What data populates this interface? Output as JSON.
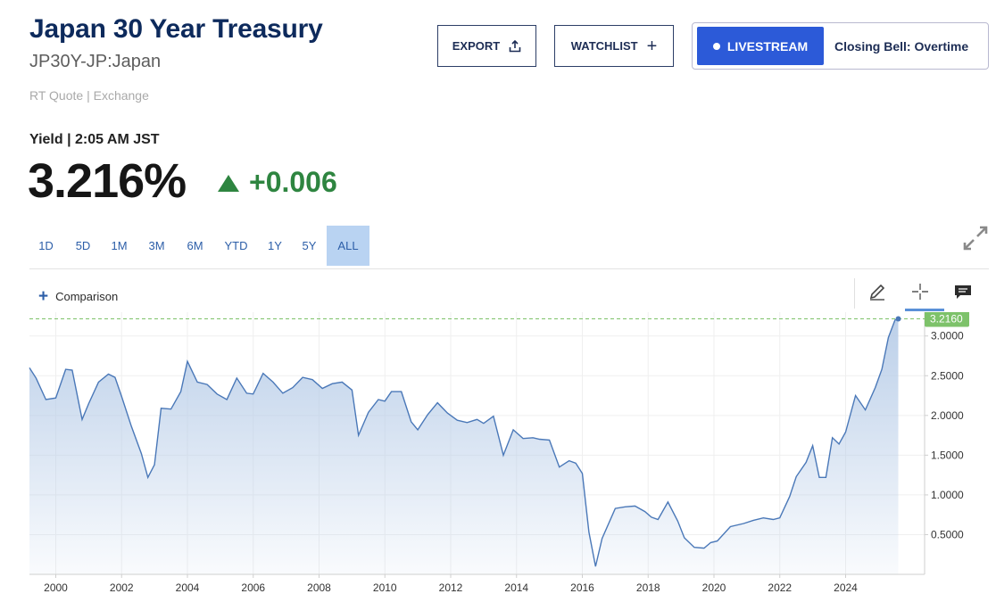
{
  "header": {
    "title": "Japan 30 Year Treasury",
    "symbol": "JP30Y-JP:Japan",
    "quote_type": "RT Quote | Exchange"
  },
  "buttons": {
    "export": "EXPORT",
    "watchlist": "WATCHLIST",
    "livestream": "LIVESTREAM",
    "live_show": "Closing Bell: Overtime"
  },
  "quote": {
    "label": "Yield | 2:05 AM JST",
    "price": "3.216%",
    "change": "+0.006",
    "direction": "up",
    "change_color": "#2e8540"
  },
  "ranges": {
    "items": [
      "1D",
      "5D",
      "1M",
      "3M",
      "6M",
      "YTD",
      "1Y",
      "5Y",
      "ALL"
    ],
    "active": "ALL"
  },
  "toolbar": {
    "comparison": "Comparison"
  },
  "chart_data": {
    "type": "area",
    "x_label_ticks": [
      "2000",
      "2002",
      "2004",
      "2006",
      "2008",
      "2010",
      "2012",
      "2014",
      "2016",
      "2018",
      "2020",
      "2022",
      "2024"
    ],
    "y_label_ticks": [
      "0.5000",
      "1.0000",
      "1.5000",
      "2.0000",
      "2.5000",
      "3.0000"
    ],
    "xlim": [
      1999.2,
      2026.4
    ],
    "ylim": [
      0,
      3.3
    ],
    "last_value_label": "3.2160",
    "last_value": 3.216,
    "line_color": "#4a78b8",
    "fill_color": "#b8cde8",
    "tag_color": "#7dc26a",
    "x": [
      1999.2,
      1999.4,
      1999.7,
      2000.0,
      2000.3,
      2000.5,
      2000.8,
      2001.0,
      2001.3,
      2001.6,
      2001.8,
      2002.0,
      2002.3,
      2002.6,
      2002.8,
      2003.0,
      2003.2,
      2003.5,
      2003.8,
      2004.0,
      2004.3,
      2004.6,
      2004.9,
      2005.2,
      2005.5,
      2005.8,
      2006.0,
      2006.3,
      2006.6,
      2006.9,
      2007.2,
      2007.5,
      2007.8,
      2008.1,
      2008.4,
      2008.7,
      2009.0,
      2009.2,
      2009.5,
      2009.8,
      2010.0,
      2010.2,
      2010.5,
      2010.8,
      2011.0,
      2011.3,
      2011.6,
      2011.9,
      2012.2,
      2012.5,
      2012.8,
      2013.0,
      2013.3,
      2013.6,
      2013.9,
      2014.2,
      2014.5,
      2014.7,
      2015.0,
      2015.3,
      2015.6,
      2015.8,
      2016.0,
      2016.2,
      2016.4,
      2016.6,
      2017.0,
      2017.3,
      2017.6,
      2017.9,
      2018.1,
      2018.3,
      2018.6,
      2018.9,
      2019.1,
      2019.4,
      2019.7,
      2019.9,
      2020.1,
      2020.5,
      2020.9,
      2021.2,
      2021.5,
      2021.8,
      2022.0,
      2022.3,
      2022.5,
      2022.8,
      2023.0,
      2023.2,
      2023.4,
      2023.6,
      2023.8,
      2024.0,
      2024.3,
      2024.6,
      2024.9,
      2025.1,
      2025.3,
      2025.5,
      2025.6
    ],
    "y": [
      2.6,
      2.47,
      2.2,
      2.22,
      2.58,
      2.57,
      1.95,
      2.15,
      2.42,
      2.52,
      2.48,
      2.24,
      1.86,
      1.52,
      1.22,
      1.38,
      2.09,
      2.08,
      2.3,
      2.68,
      2.42,
      2.39,
      2.27,
      2.2,
      2.47,
      2.28,
      2.27,
      2.53,
      2.42,
      2.28,
      2.35,
      2.48,
      2.45,
      2.34,
      2.4,
      2.42,
      2.32,
      1.75,
      2.04,
      2.2,
      2.18,
      2.3,
      2.3,
      1.92,
      1.82,
      2.01,
      2.16,
      2.03,
      1.94,
      1.91,
      1.95,
      1.9,
      1.99,
      1.5,
      1.82,
      1.71,
      1.72,
      1.7,
      1.69,
      1.35,
      1.43,
      1.4,
      1.27,
      0.53,
      0.1,
      0.45,
      0.83,
      0.85,
      0.86,
      0.79,
      0.72,
      0.69,
      0.91,
      0.67,
      0.46,
      0.34,
      0.33,
      0.4,
      0.42,
      0.6,
      0.64,
      0.68,
      0.71,
      0.69,
      0.71,
      0.98,
      1.23,
      1.41,
      1.62,
      1.22,
      1.22,
      1.72,
      1.64,
      1.79,
      2.25,
      2.07,
      2.35,
      2.58,
      2.98,
      3.2,
      3.216
    ]
  }
}
